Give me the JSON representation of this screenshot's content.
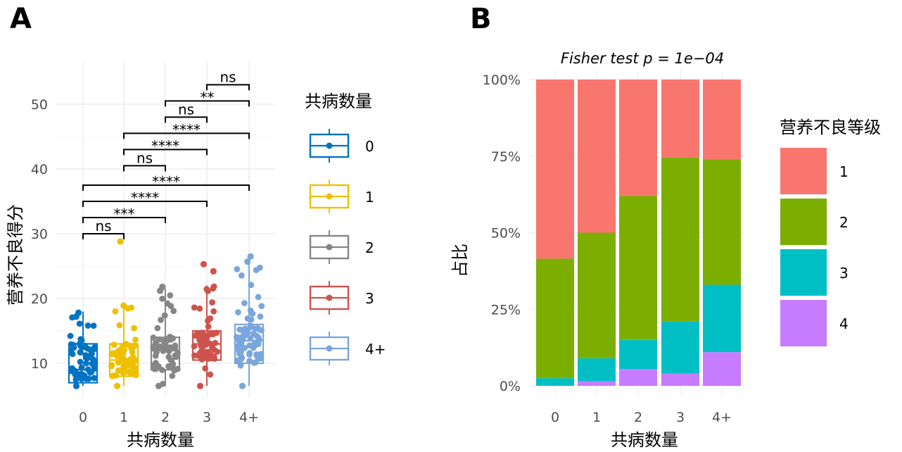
{
  "panels": {
    "a_tag": "A",
    "b_tag": "B"
  },
  "chart_data": [
    {
      "type": "box",
      "xlabel": "共病数量",
      "ylabel": "营养不良得分",
      "categories": [
        "0",
        "1",
        "2",
        "3",
        "4+"
      ],
      "ylim": [
        5,
        55
      ],
      "yticks": [
        10,
        20,
        30,
        40,
        50
      ],
      "grid": true,
      "legend": {
        "title": "共病数量",
        "position": "right",
        "entries": [
          "0",
          "1",
          "2",
          "3",
          "4+"
        ]
      },
      "colors": [
        "#0073C2",
        "#EFC000",
        "#868686",
        "#CD534C",
        "#7AA6DC"
      ],
      "boxes": [
        {
          "name": "0",
          "whisker_low": 6.5,
          "q1": 7.0,
          "median": 9.0,
          "q3": 13.0,
          "whisker_high": 18.0,
          "n_points": 60,
          "extreme_points": [
            6.5,
            17.8,
            17.2
          ]
        },
        {
          "name": "1",
          "whisker_low": 6.5,
          "q1": 8.0,
          "median": 10.5,
          "q3": 13.0,
          "whisker_high": 19.0,
          "n_points": 60,
          "extreme_points": [
            6.5,
            18.9,
            28.8
          ]
        },
        {
          "name": "2",
          "whisker_low": 6.5,
          "q1": 9.0,
          "median": 12.0,
          "q3": 14.0,
          "whisker_high": 21.5,
          "n_points": 60,
          "extreme_points": [
            6.5,
            21.8,
            21.2
          ]
        },
        {
          "name": "3",
          "whisker_low": 6.5,
          "q1": 10.5,
          "median": 13.0,
          "q3": 15.0,
          "whisker_high": 22.0,
          "n_points": 60,
          "extreme_points": [
            6.5,
            24.2,
            25.3
          ]
        },
        {
          "name": "4+",
          "whisker_low": 6.5,
          "q1": 10.0,
          "median": 13.5,
          "q3": 16.0,
          "whisker_high": 26.0,
          "n_points": 70,
          "extreme_points": [
            6.5,
            26.5,
            25.7
          ]
        }
      ],
      "comparisons": [
        {
          "from": "0",
          "to": "1",
          "y": 30.0,
          "label": "ns"
        },
        {
          "from": "0",
          "to": "2",
          "y": 32.5,
          "label": "***"
        },
        {
          "from": "0",
          "to": "3",
          "y": 35.0,
          "label": "****"
        },
        {
          "from": "0",
          "to": "4+",
          "y": 37.5,
          "label": "****"
        },
        {
          "from": "1",
          "to": "2",
          "y": 40.5,
          "label": "ns"
        },
        {
          "from": "1",
          "to": "3",
          "y": 43.0,
          "label": "****"
        },
        {
          "from": "1",
          "to": "4+",
          "y": 45.5,
          "label": "****"
        },
        {
          "from": "2",
          "to": "3",
          "y": 48.0,
          "label": "ns"
        },
        {
          "from": "2",
          "to": "4+",
          "y": 50.5,
          "label": "**"
        },
        {
          "from": "3",
          "to": "4+",
          "y": 53.0,
          "label": "ns"
        }
      ]
    },
    {
      "type": "bar",
      "stacked": true,
      "subtitle": "Fisher test p = 1e−04",
      "xlabel": "共病数量",
      "ylabel": "占比",
      "categories": [
        "0",
        "1",
        "2",
        "3",
        "4+"
      ],
      "yticks": [
        "0%",
        "25%",
        "50%",
        "75%",
        "100%"
      ],
      "ylim": [
        0,
        1
      ],
      "grid": true,
      "legend": {
        "title": "营养不良等级",
        "position": "right"
      },
      "series": [
        {
          "name": "1",
          "color": "#F8766D",
          "values": [
            0.585,
            0.5,
            0.38,
            0.255,
            0.26
          ]
        },
        {
          "name": "2",
          "color": "#7CAE00",
          "values": [
            0.39,
            0.41,
            0.47,
            0.535,
            0.41
          ]
        },
        {
          "name": "3",
          "color": "#00BFC4",
          "values": [
            0.025,
            0.075,
            0.095,
            0.17,
            0.22
          ]
        },
        {
          "name": "4",
          "color": "#C77CFF",
          "values": [
            0.0,
            0.015,
            0.055,
            0.04,
            0.11
          ]
        }
      ]
    }
  ]
}
